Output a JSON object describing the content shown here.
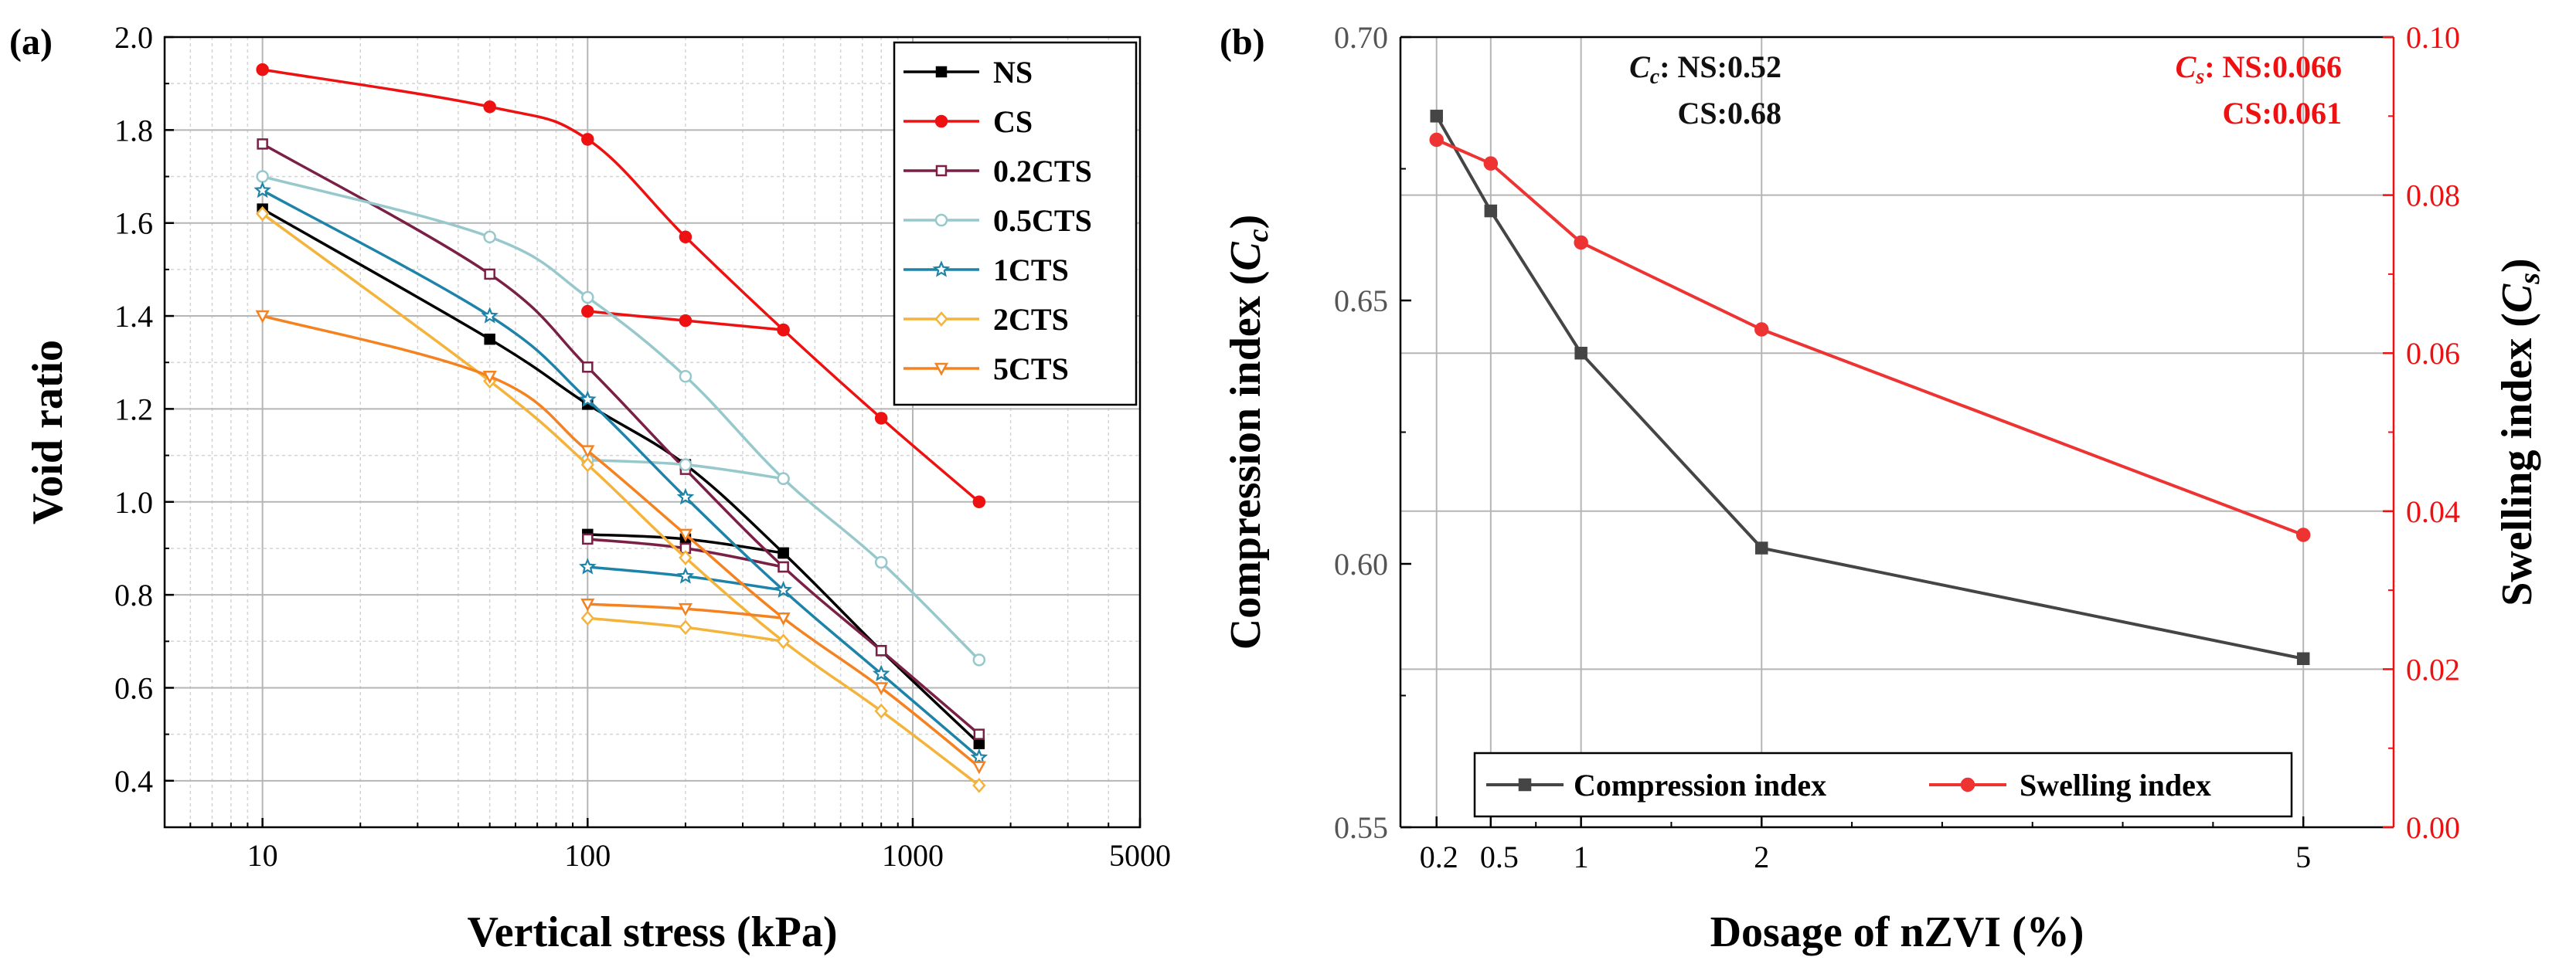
{
  "chart_data": [
    {
      "panel_label": "(a)",
      "type": "line",
      "xlabel": "Vertical stress (kPa)",
      "ylabel": "Void ratio",
      "xscale": "log",
      "xlim": [
        5,
        5000
      ],
      "ylim": [
        0.3,
        2.0
      ],
      "xticks": [
        "10",
        "100",
        "1000",
        "5000"
      ],
      "yticks": [
        "0.4",
        "0.6",
        "0.8",
        "1.0",
        "1.2",
        "1.4",
        "1.6",
        "1.8",
        "2.0"
      ],
      "grid": true,
      "legend_position": "top-right",
      "series": [
        {
          "name": "NS",
          "color": "#000000",
          "marker": "square-filled",
          "loading": [
            [
              10,
              1.63
            ],
            [
              50,
              1.35
            ],
            [
              100,
              1.21
            ],
            [
              200,
              1.08
            ],
            [
              400,
              0.89
            ],
            [
              800,
              0.68
            ],
            [
              1600,
              0.48
            ]
          ],
          "unloading": [
            [
              400,
              0.89
            ],
            [
              200,
              0.92
            ],
            [
              100,
              0.93
            ]
          ]
        },
        {
          "name": "CS",
          "color": "#ee1111",
          "marker": "circle-filled",
          "loading": [
            [
              10,
              1.93
            ],
            [
              50,
              1.85
            ],
            [
              100,
              1.78
            ],
            [
              200,
              1.57
            ],
            [
              400,
              1.37
            ],
            [
              800,
              1.18
            ],
            [
              1600,
              1.0
            ]
          ],
          "unloading": [
            [
              400,
              1.37
            ],
            [
              200,
              1.39
            ],
            [
              100,
              1.41
            ]
          ]
        },
        {
          "name": "0.2CTS",
          "color": "#7a1f45",
          "marker": "square-open",
          "loading": [
            [
              10,
              1.77
            ],
            [
              50,
              1.49
            ],
            [
              100,
              1.29
            ],
            [
              200,
              1.07
            ],
            [
              400,
              0.86
            ],
            [
              800,
              0.68
            ],
            [
              1600,
              0.5
            ]
          ],
          "unloading": [
            [
              400,
              0.86
            ],
            [
              200,
              0.9
            ],
            [
              100,
              0.92
            ]
          ]
        },
        {
          "name": "0.5CTS",
          "color": "#96c8cc",
          "marker": "circle-open",
          "loading": [
            [
              10,
              1.7
            ],
            [
              50,
              1.57
            ],
            [
              100,
              1.44
            ],
            [
              200,
              1.27
            ],
            [
              400,
              1.05
            ],
            [
              800,
              0.87
            ],
            [
              1600,
              0.66
            ]
          ],
          "unloading": [
            [
              400,
              1.05
            ],
            [
              200,
              1.08
            ],
            [
              100,
              1.09
            ]
          ]
        },
        {
          "name": "1CTS",
          "color": "#1e83a8",
          "marker": "star-open",
          "loading": [
            [
              10,
              1.67
            ],
            [
              50,
              1.4
            ],
            [
              100,
              1.22
            ],
            [
              200,
              1.01
            ],
            [
              400,
              0.81
            ],
            [
              800,
              0.63
            ],
            [
              1600,
              0.45
            ]
          ],
          "unloading": [
            [
              400,
              0.81
            ],
            [
              200,
              0.84
            ],
            [
              100,
              0.86
            ]
          ]
        },
        {
          "name": "2CTS",
          "color": "#f4b43c",
          "marker": "diamond-open",
          "loading": [
            [
              10,
              1.62
            ],
            [
              50,
              1.26
            ],
            [
              100,
              1.08
            ],
            [
              200,
              0.88
            ],
            [
              400,
              0.7
            ],
            [
              800,
              0.55
            ],
            [
              1600,
              0.39
            ]
          ],
          "unloading": [
            [
              400,
              0.7
            ],
            [
              200,
              0.73
            ],
            [
              100,
              0.75
            ]
          ]
        },
        {
          "name": "5CTS",
          "color": "#f58220",
          "marker": "triangle-down-open",
          "loading": [
            [
              10,
              1.4
            ],
            [
              50,
              1.27
            ],
            [
              100,
              1.11
            ],
            [
              200,
              0.93
            ],
            [
              400,
              0.75
            ],
            [
              800,
              0.6
            ],
            [
              1600,
              0.43
            ]
          ],
          "unloading": [
            [
              400,
              0.75
            ],
            [
              200,
              0.77
            ],
            [
              100,
              0.78
            ]
          ]
        }
      ]
    },
    {
      "panel_label": "(b)",
      "type": "line",
      "xlabel": "Dosage of nZVI (%)",
      "ylabel_left": "Compression index (Cc)",
      "ylabel_right": "Swelling index (Cs)",
      "xlim": [
        0,
        5.5
      ],
      "ylim_left": [
        0.55,
        0.7
      ],
      "ylim_right": [
        0.0,
        0.1
      ],
      "xticks": [
        "0.2",
        "0.5",
        "1",
        "2",
        "5"
      ],
      "yticks_left": [
        "0.55",
        "0.60",
        "0.65",
        "0.70"
      ],
      "yticks_right": [
        "0.00",
        "0.02",
        "0.04",
        "0.06",
        "0.08",
        "0.10"
      ],
      "grid": true,
      "legend_position": "bottom",
      "series": [
        {
          "name": "Compression index",
          "axis": "left",
          "color": "#454545",
          "marker": "square-filled",
          "x": [
            0.2,
            0.5,
            1,
            2,
            5
          ],
          "y": [
            0.685,
            0.667,
            0.64,
            0.603,
            0.582
          ]
        },
        {
          "name": "Swelling index",
          "axis": "right",
          "color": "#ee3333",
          "marker": "circle-filled",
          "x": [
            0.2,
            0.5,
            1,
            2,
            5
          ],
          "y": [
            0.087,
            0.084,
            0.074,
            0.063,
            0.037
          ]
        }
      ],
      "annotations": {
        "cc": {
          "symbol": "C",
          "sub": "c",
          "prefix_line1": ": NS:0.52",
          "line2": "CS:0.68",
          "color": "#111111"
        },
        "cs": {
          "symbol": "C",
          "sub": "s",
          "prefix_line1": ": NS:0.066",
          "line2": "CS:0.061",
          "color": "#ee1111"
        }
      }
    }
  ]
}
